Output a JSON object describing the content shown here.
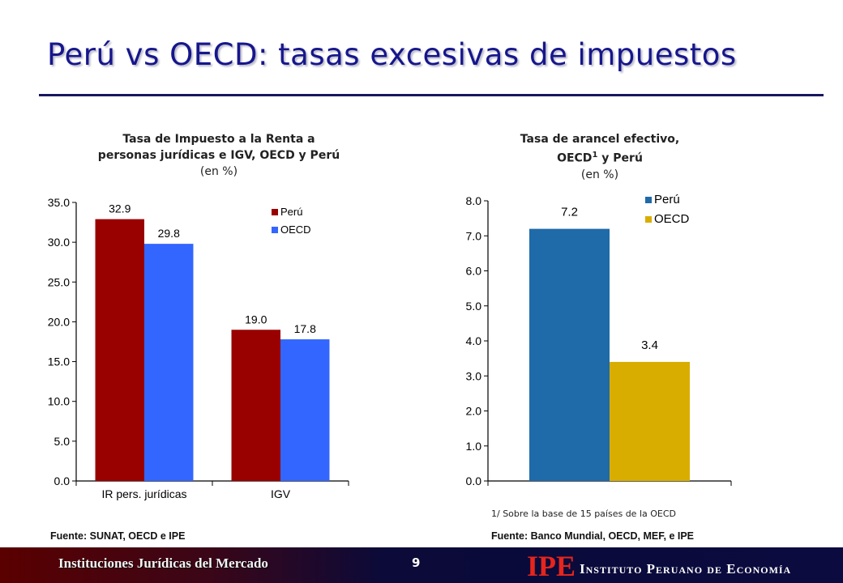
{
  "slide": {
    "title": "Perú vs OECD: tasas excesivas de impuestos",
    "footer_left": "Instituciones Jurídicas del Mercado",
    "page_number": "9",
    "logo_abbrev": "IPE",
    "logo_name": "Instituto Peruano de Economía"
  },
  "left": {
    "title_line1": "Tasa de Impuesto a la Renta a",
    "title_line2": "personas jurídicas e IGV, OECD y Perú",
    "subtitle": "(en %)",
    "source": "Fuente: SUNAT, OECD e IPE"
  },
  "right": {
    "title_line1": "Tasa de arancel efectivo,",
    "title_line2a": "OECD",
    "title_sup": "1",
    "title_line2b": " y Perú",
    "subtitle": "(en %)",
    "note": "1/ Sobre la base de 15 países de la OECD",
    "source": "Fuente: Banco Mundial, OECD, MEF, e IPE"
  },
  "colors": {
    "peru_left": "#990000",
    "oecd_left": "#3366ff",
    "peru_right": "#1f6aa8",
    "oecd_right": "#d9ad00",
    "title": "#16168c"
  },
  "chart_data": [
    {
      "type": "bar",
      "title": "Tasa de Impuesto a la Renta a personas jurídicas e IGV, OECD y Perú",
      "categories": [
        "IR pers. jurídicas",
        "IGV"
      ],
      "series": [
        {
          "name": "Perú",
          "values": [
            32.9,
            19.0
          ],
          "labels": [
            "32.9",
            "19.0"
          ]
        },
        {
          "name": "OECD",
          "values": [
            29.8,
            17.8
          ],
          "labels": [
            "29.8",
            "17.8"
          ]
        }
      ],
      "yticks": [
        "0.0",
        "5.0",
        "10.0",
        "15.0",
        "20.0",
        "25.0",
        "30.0",
        "35.0"
      ],
      "ylim": [
        0,
        35
      ],
      "legend": "top-right",
      "grid": false
    },
    {
      "type": "bar",
      "title": "Tasa de arancel efectivo, OECD1 y Perú",
      "categories": [
        ""
      ],
      "series": [
        {
          "name": "Perú",
          "values": [
            7.2
          ],
          "labels": [
            "7.2"
          ]
        },
        {
          "name": "OECD",
          "values": [
            3.4
          ],
          "labels": [
            "3.4"
          ]
        }
      ],
      "yticks": [
        "0.0",
        "1.0",
        "2.0",
        "3.0",
        "4.0",
        "5.0",
        "6.0",
        "7.0",
        "8.0"
      ],
      "ylim": [
        0,
        8
      ],
      "legend": "top-right",
      "grid": false
    }
  ]
}
